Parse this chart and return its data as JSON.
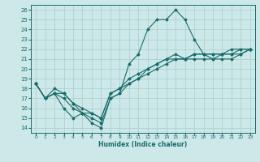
{
  "xlabel": "Humidex (Indice chaleur)",
  "xlim": [
    -0.5,
    23.5
  ],
  "ylim": [
    13.5,
    26.5
  ],
  "xticks": [
    0,
    1,
    2,
    3,
    4,
    5,
    6,
    7,
    8,
    9,
    10,
    11,
    12,
    13,
    14,
    15,
    16,
    17,
    18,
    19,
    20,
    21,
    22,
    23
  ],
  "yticks": [
    14,
    15,
    16,
    17,
    18,
    19,
    20,
    21,
    22,
    23,
    24,
    25,
    26
  ],
  "bg_color": "#cce8e8",
  "line_color": "#1a6b6b",
  "grid_color": "#aacccc",
  "lines": [
    {
      "x": [
        0,
        1,
        2,
        3,
        4,
        5,
        6,
        7,
        8,
        9,
        10,
        11,
        12,
        13,
        14,
        15,
        16,
        17,
        18,
        19,
        20,
        21,
        22,
        23
      ],
      "y": [
        18.5,
        17.0,
        17.5,
        16.0,
        15.0,
        15.5,
        14.5,
        14.0,
        17.0,
        17.5,
        20.5,
        21.5,
        24.0,
        25.0,
        25.0,
        26.0,
        25.0,
        23.0,
        21.5,
        21.0,
        21.0,
        21.0,
        21.5,
        22.0
      ]
    },
    {
      "x": [
        0,
        1,
        2,
        3,
        4,
        5,
        6,
        7,
        8,
        9,
        10,
        11,
        12,
        13,
        14,
        15,
        16,
        17,
        18,
        19,
        20,
        21,
        22,
        23
      ],
      "y": [
        18.5,
        17.0,
        17.5,
        17.0,
        16.0,
        15.5,
        15.0,
        14.5,
        17.0,
        17.5,
        18.5,
        19.0,
        19.5,
        20.0,
        20.5,
        21.0,
        21.0,
        21.0,
        21.0,
        21.0,
        21.5,
        21.5,
        21.5,
        22.0
      ]
    },
    {
      "x": [
        0,
        1,
        2,
        3,
        4,
        5,
        6,
        7,
        8,
        9,
        10,
        11,
        12,
        13,
        14,
        15,
        16,
        17,
        18,
        19,
        20,
        21,
        22,
        23
      ],
      "y": [
        18.5,
        17.0,
        17.5,
        17.5,
        16.5,
        15.5,
        15.5,
        15.0,
        17.5,
        18.0,
        18.5,
        19.0,
        20.0,
        20.5,
        21.0,
        21.0,
        21.0,
        21.5,
        21.5,
        21.5,
        21.5,
        21.5,
        22.0,
        22.0
      ]
    },
    {
      "x": [
        0,
        1,
        2,
        3,
        4,
        5,
        6,
        7,
        8,
        9,
        10,
        11,
        12,
        13,
        14,
        15,
        16,
        17,
        18,
        19,
        20,
        21,
        22,
        23
      ],
      "y": [
        18.5,
        17.0,
        18.0,
        17.5,
        16.5,
        16.0,
        15.5,
        15.0,
        17.5,
        18.0,
        19.0,
        19.5,
        20.0,
        20.5,
        21.0,
        21.5,
        21.0,
        21.5,
        21.5,
        21.5,
        21.5,
        22.0,
        22.0,
        22.0
      ]
    }
  ]
}
